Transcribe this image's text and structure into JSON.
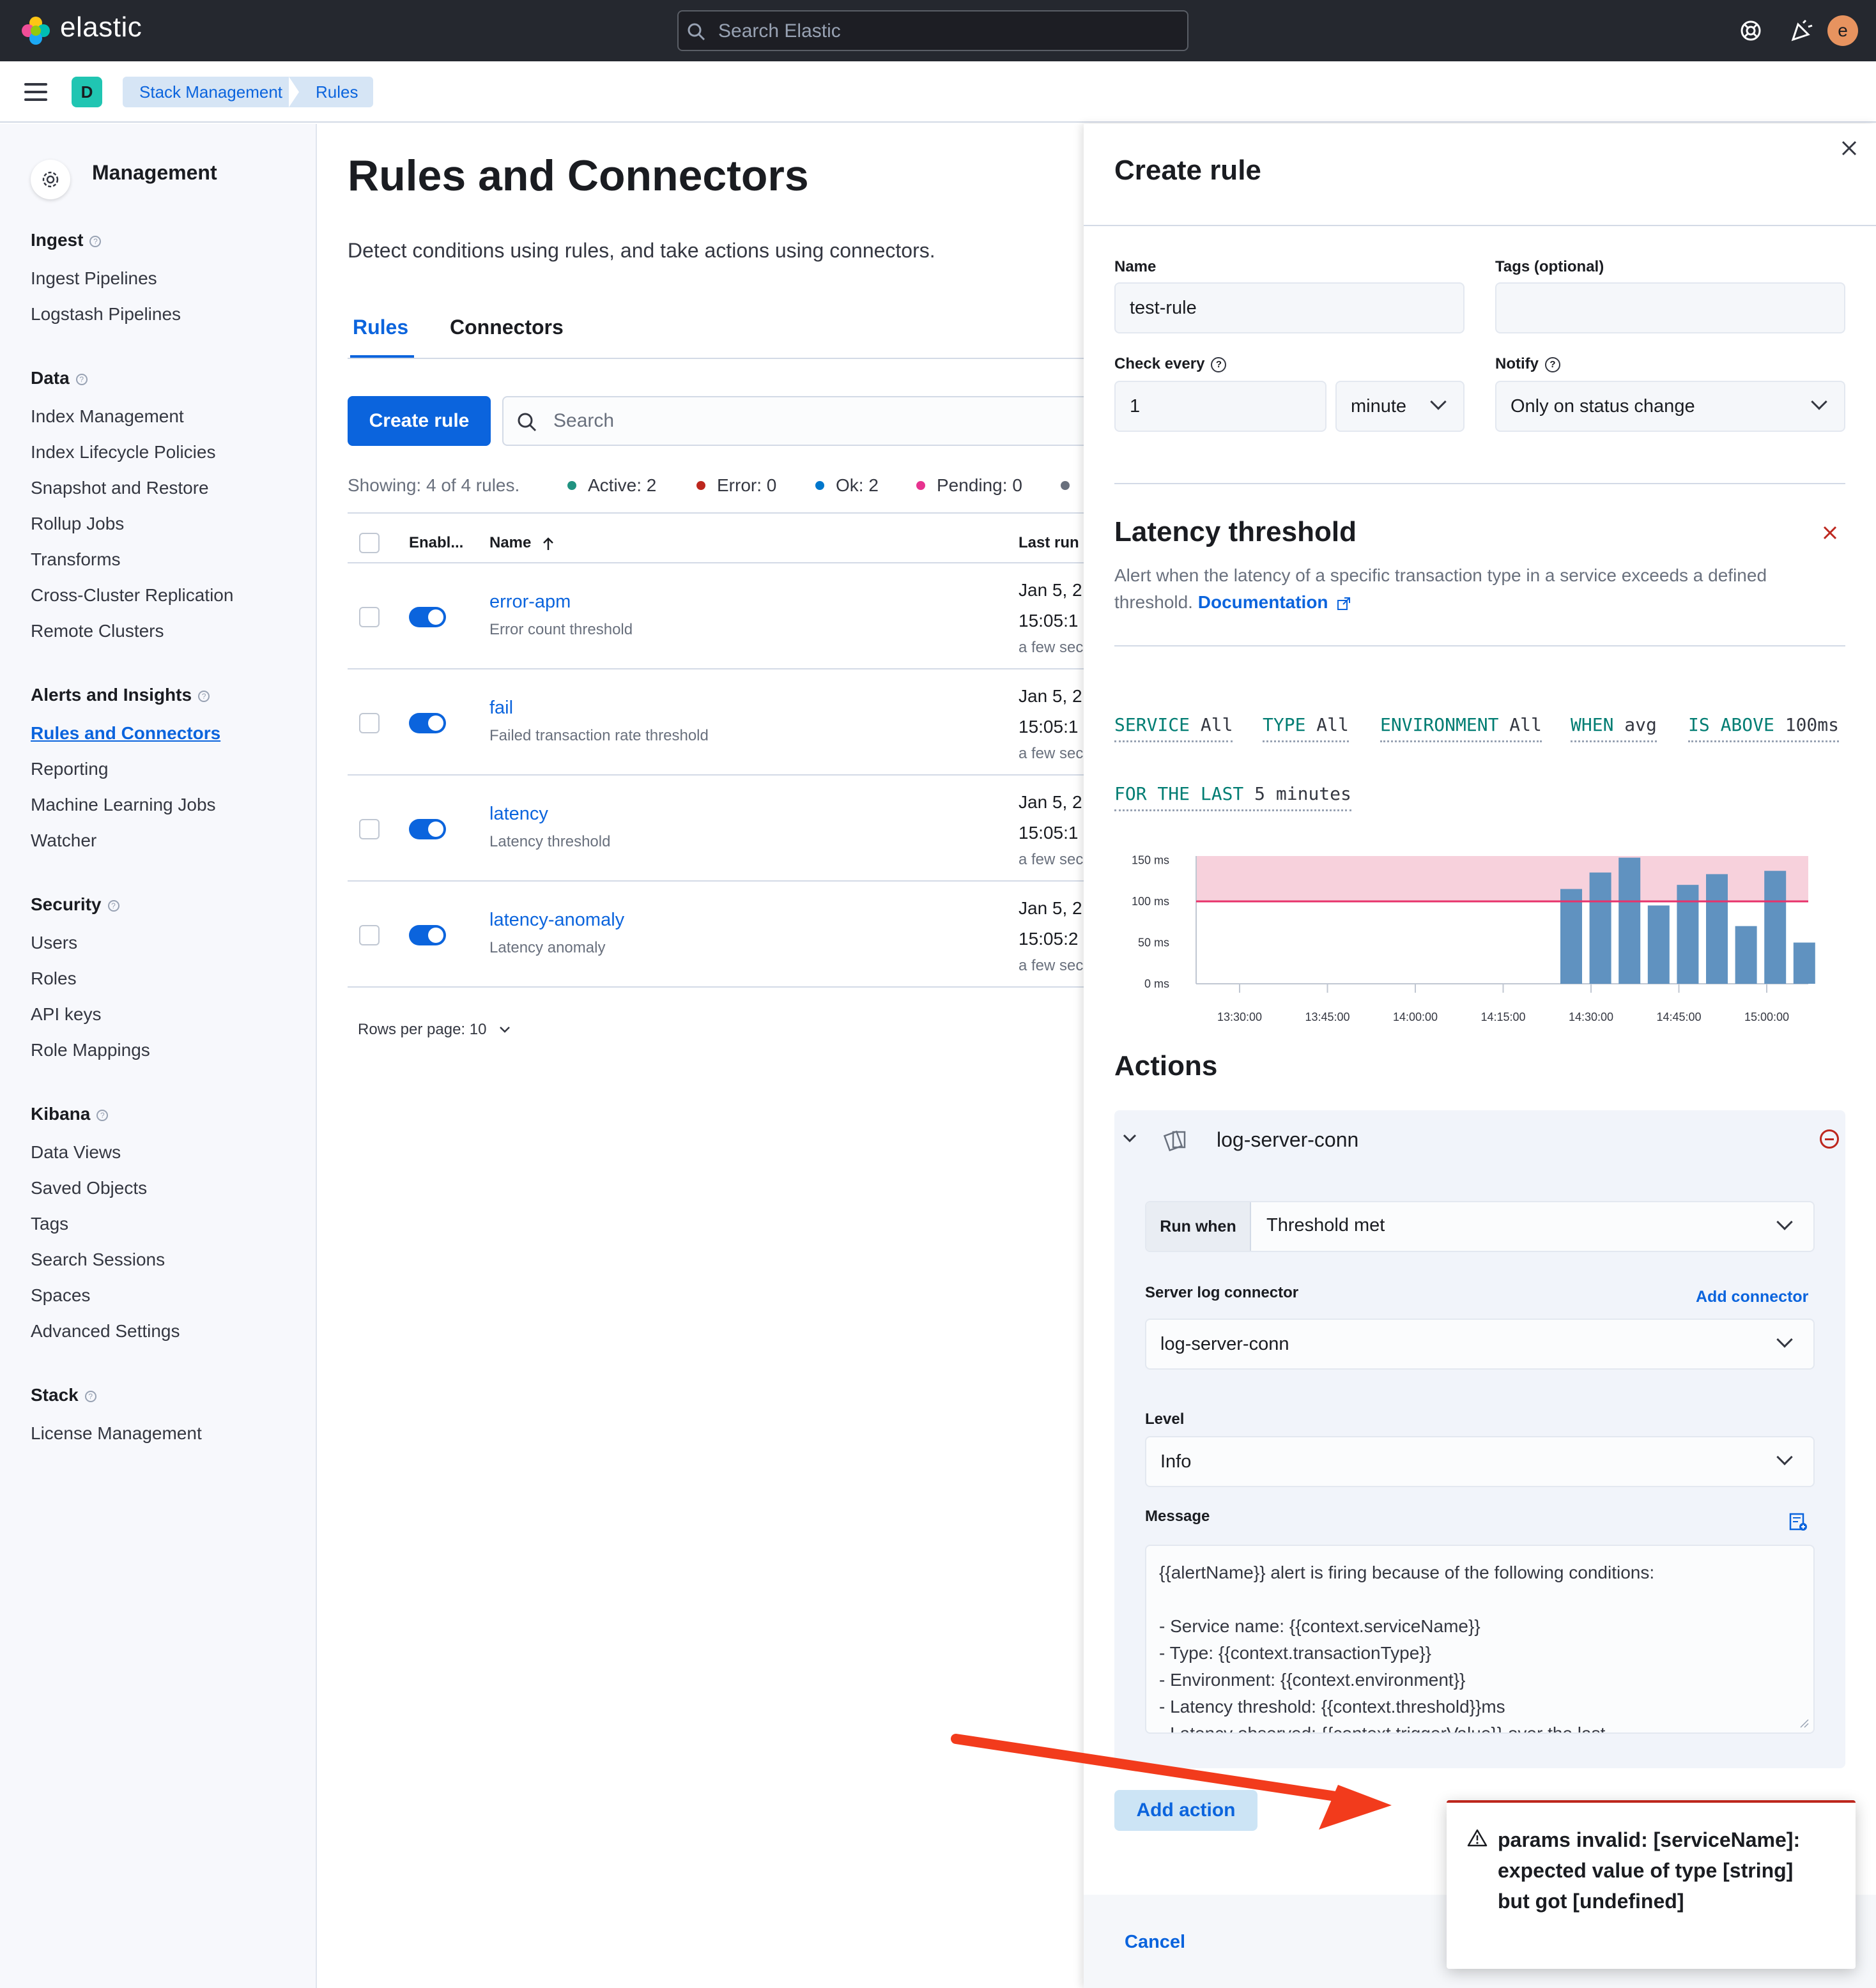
{
  "header": {
    "brand": "elastic",
    "search_placeholder": "Search Elastic",
    "avatar_initial": "e"
  },
  "breadcrumbs": {
    "space_initial": "D",
    "items": [
      "Stack Management",
      "Rules"
    ]
  },
  "sidebar": {
    "title": "Management",
    "sections": [
      {
        "heading": "Ingest",
        "items": [
          "Ingest Pipelines",
          "Logstash Pipelines"
        ]
      },
      {
        "heading": "Data",
        "items": [
          "Index Management",
          "Index Lifecycle Policies",
          "Snapshot and Restore",
          "Rollup Jobs",
          "Transforms",
          "Cross-Cluster Replication",
          "Remote Clusters"
        ]
      },
      {
        "heading": "Alerts and Insights",
        "items": [
          "Rules and Connectors",
          "Reporting",
          "Machine Learning Jobs",
          "Watcher"
        ]
      },
      {
        "heading": "Security",
        "items": [
          "Users",
          "Roles",
          "API keys",
          "Role Mappings"
        ]
      },
      {
        "heading": "Kibana",
        "items": [
          "Data Views",
          "Saved Objects",
          "Tags",
          "Search Sessions",
          "Spaces",
          "Advanced Settings"
        ]
      },
      {
        "heading": "Stack",
        "items": [
          "License Management"
        ]
      }
    ],
    "active_item": "Rules and Connectors"
  },
  "main": {
    "title": "Rules and Connectors",
    "description": "Detect conditions using rules, and take actions using connectors.",
    "tabs": [
      {
        "label": "Rules",
        "active": true
      },
      {
        "label": "Connectors",
        "active": false
      }
    ],
    "create_button": "Create rule",
    "search_placeholder": "Search",
    "showing": "Showing: 4 of 4 rules.",
    "stats": [
      {
        "label": "Active: 2",
        "color": "#209280"
      },
      {
        "label": "Error: 0",
        "color": "#bd271e"
      },
      {
        "label": "Ok: 2",
        "color": "#0077cc"
      },
      {
        "label": "Pending: 0",
        "color": "#e7338f"
      }
    ],
    "columns": {
      "enabled": "Enabl...",
      "name": "Name",
      "last_run": "Last run"
    },
    "rules": [
      {
        "name": "error-apm",
        "type": "Error count threshold",
        "date": "Jan 5, 2",
        "time": "15:05:1",
        "ago": "a few sec"
      },
      {
        "name": "fail",
        "type": "Failed transaction rate threshold",
        "date": "Jan 5, 2",
        "time": "15:05:1",
        "ago": "a few sec"
      },
      {
        "name": "latency",
        "type": "Latency threshold",
        "date": "Jan 5, 2",
        "time": "15:05:1",
        "ago": "a few sec"
      },
      {
        "name": "latency-anomaly",
        "type": "Latency anomaly",
        "date": "Jan 5, 2",
        "time": "15:05:2",
        "ago": "a few sec"
      }
    ],
    "rows_per_page": "Rows per page: 10"
  },
  "flyout": {
    "title": "Create rule",
    "name_label": "Name",
    "name_value": "test-rule",
    "tags_label": "Tags (optional)",
    "tags_value": "",
    "check_every_label": "Check every",
    "check_every_value": "1",
    "check_every_unit": "minute",
    "notify_label": "Notify",
    "notify_value": "Only on status change",
    "rule_type_title": "Latency threshold",
    "rule_type_desc": "Alert when the latency of a specific transaction type in a service exceeds a defined threshold.",
    "doc_link": "Documentation",
    "expressions": [
      {
        "key": "SERVICE",
        "value": "All"
      },
      {
        "key": "TYPE",
        "value": "All"
      },
      {
        "key": "ENVIRONMENT",
        "value": "All"
      },
      {
        "key": "WHEN",
        "value": "avg"
      },
      {
        "key": "IS ABOVE",
        "value": "100ms"
      },
      {
        "key": "FOR THE LAST",
        "value": "5 minutes"
      }
    ],
    "actions_title": "Actions",
    "action": {
      "connector_name": "log-server-conn",
      "run_when_label": "Run when",
      "run_when_value": "Threshold met",
      "server_log_label": "Server log connector",
      "add_connector": "Add connector",
      "connector_value": "log-server-conn",
      "level_label": "Level",
      "level_value": "Info",
      "message_label": "Message",
      "message_lines": [
        "{{alertName}} alert is firing because of the following conditions:",
        "",
        "- Service name: {{context.serviceName}}",
        "- Type: {{context.transactionType}}",
        "- Environment: {{context.environment}}",
        "- Latency threshold: {{context.threshold}}ms",
        "- Latency observed: {{context.triggerValue}} over the last"
      ]
    },
    "add_action": "Add action",
    "cancel": "Cancel"
  },
  "chart_data": {
    "type": "bar",
    "x": [
      "14:25",
      "14:30",
      "14:35",
      "14:40",
      "14:45",
      "14:50",
      "14:55",
      "15:00",
      "15:05"
    ],
    "values": [
      115,
      135,
      153,
      95,
      120,
      133,
      70,
      137,
      50
    ],
    "x_tick_labels": [
      "13:30:00",
      "13:45:00",
      "14:00:00",
      "14:15:00",
      "14:30:00",
      "14:45:00",
      "15:00:00"
    ],
    "y_tick_labels": [
      "0 ms",
      "50 ms",
      "100 ms",
      "150 ms"
    ],
    "ylim": [
      0,
      155
    ],
    "threshold": 100,
    "bar_color": "#6092c0",
    "threshold_color": "#e7336b",
    "threshold_area_color": "#f7d1dc"
  },
  "toast": {
    "message": "params invalid: [serviceName]: expected value of type [string] but got [undefined]"
  }
}
